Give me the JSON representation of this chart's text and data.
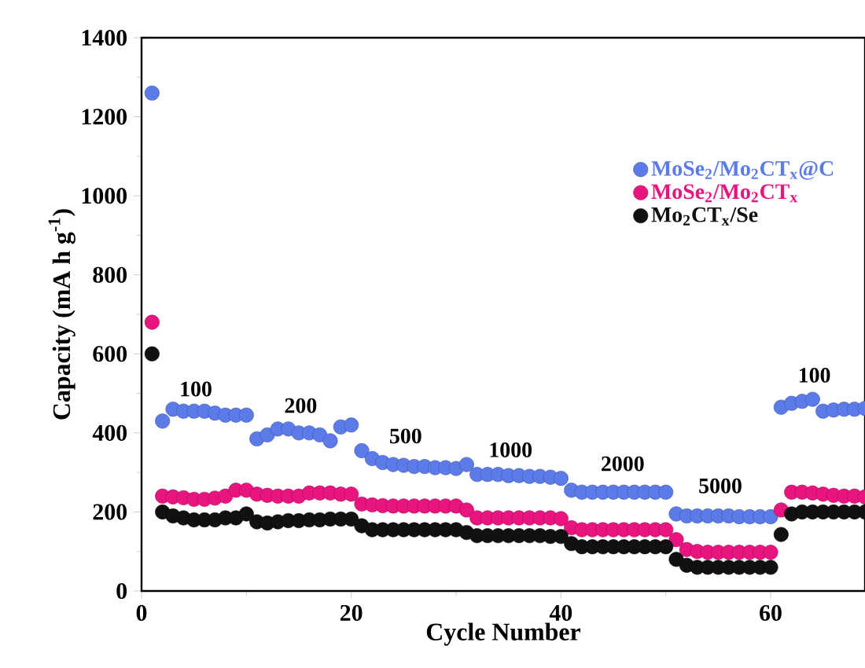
{
  "chart_data": {
    "type": "scatter",
    "xlabel": "Cycle Number",
    "ylabel": "Capacity (mA h g$^{-1}$)",
    "x": [
      1,
      2,
      3,
      4,
      5,
      6,
      7,
      8,
      9,
      10,
      11,
      12,
      13,
      14,
      15,
      16,
      17,
      18,
      19,
      20,
      21,
      22,
      23,
      24,
      25,
      26,
      27,
      28,
      29,
      30,
      31,
      32,
      33,
      34,
      35,
      36,
      37,
      38,
      39,
      40,
      41,
      42,
      43,
      44,
      45,
      46,
      47,
      48,
      49,
      50,
      51,
      52,
      53,
      54,
      55,
      56,
      57,
      58,
      59,
      60,
      61,
      62,
      63,
      64,
      65,
      66,
      67,
      68,
      69
    ],
    "series": [
      {
        "name": "MoSe$_{2}$/Mo$_{2}$CT$_{x}$@C",
        "color": "#5b7be8",
        "values": [
          1260,
          430,
          460,
          455,
          455,
          455,
          450,
          445,
          445,
          445,
          385,
          395,
          410,
          410,
          400,
          400,
          395,
          380,
          415,
          420,
          355,
          335,
          325,
          320,
          318,
          315,
          315,
          312,
          312,
          310,
          320,
          295,
          295,
          295,
          292,
          292,
          290,
          290,
          288,
          285,
          255,
          250,
          250,
          250,
          250,
          250,
          250,
          250,
          250,
          250,
          195,
          190,
          190,
          190,
          190,
          190,
          188,
          188,
          188,
          188,
          465,
          475,
          480,
          485,
          455,
          458,
          460,
          460,
          462
        ]
      },
      {
        "name": "MoSe$_{2}$/Mo$_{2}$CT$_{x}$",
        "color": "#e8157f",
        "values": [
          680,
          240,
          238,
          236,
          232,
          232,
          235,
          240,
          255,
          255,
          245,
          242,
          240,
          240,
          240,
          248,
          248,
          248,
          245,
          245,
          220,
          218,
          216,
          215,
          215,
          215,
          215,
          215,
          215,
          215,
          205,
          185,
          185,
          185,
          185,
          185,
          185,
          185,
          185,
          183,
          160,
          155,
          155,
          155,
          155,
          155,
          155,
          155,
          155,
          155,
          130,
          105,
          100,
          98,
          98,
          98,
          98,
          98,
          98,
          98,
          205,
          250,
          250,
          248,
          245,
          242,
          240,
          240,
          238
        ]
      },
      {
        "name": "Mo$_{2}$CT$_{x}$/Se",
        "color": "#111111",
        "values": [
          600,
          200,
          190,
          185,
          180,
          180,
          180,
          185,
          185,
          195,
          175,
          172,
          175,
          178,
          178,
          180,
          180,
          182,
          182,
          182,
          165,
          155,
          155,
          155,
          155,
          155,
          155,
          155,
          155,
          155,
          148,
          140,
          140,
          140,
          140,
          140,
          140,
          140,
          138,
          138,
          120,
          112,
          112,
          112,
          112,
          112,
          112,
          112,
          112,
          112,
          80,
          65,
          60,
          60,
          60,
          60,
          60,
          60,
          60,
          60,
          143,
          195,
          200,
          200,
          200,
          200,
          200,
          200,
          200
        ]
      }
    ],
    "annotations": [
      "100",
      "200",
      "500",
      "1000",
      "2000",
      "5000",
      "100"
    ],
    "xlim": [
      0,
      69
    ],
    "ylim": [
      0,
      1400
    ],
    "xticks": [
      0,
      20,
      40,
      60
    ],
    "yticks": [
      0,
      200,
      400,
      600,
      800,
      1000,
      1200,
      1400
    ],
    "marker": "circle",
    "legend": "right",
    "grid": false
  }
}
